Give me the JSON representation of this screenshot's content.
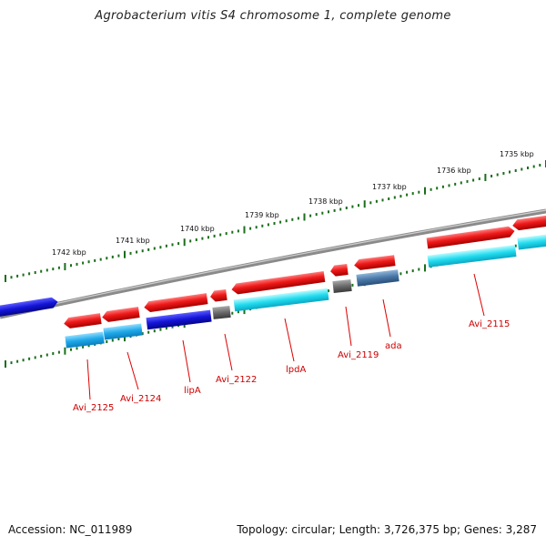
{
  "title": "Agrobacterium vitis S4 chromosome 1, complete genome",
  "footer": {
    "accession": "Accession: NC_011989",
    "summary": "Topology: circular; Length: 3,726,375 bp; Genes: 3,287"
  },
  "scale_labels": [
    "1735 kbp",
    "1736 kbp",
    "1737 kbp",
    "1738 kbp",
    "1739 kbp",
    "1740 kbp",
    "1741 kbp",
    "1742 kbp"
  ],
  "gene_labels": [
    "Avi_2115",
    "ada",
    "Avi_2119",
    "lpdA",
    "Avi_2122",
    "lipA",
    "Avi_2124",
    "Avi_2125"
  ],
  "colors": {
    "gene_red": "#e8141c",
    "cds_cyan": "#1fd9ee",
    "cds_blue": "#1414cc",
    "gray": "#6e6e6e",
    "steel": "#4a78a8",
    "ticks": "#1b6e1b",
    "label_red": "#cc0000"
  }
}
